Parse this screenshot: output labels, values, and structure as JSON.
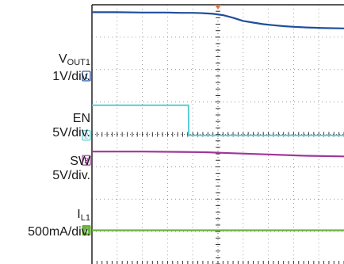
{
  "chart_data": {
    "type": "line",
    "title": "",
    "xlabel": "",
    "ylabel": "",
    "grid": true,
    "divisions": {
      "x": 10,
      "y": 8
    },
    "trigger_marker_color": "#e8743b",
    "channels": [
      {
        "id": "1",
        "name_main": "V",
        "name_sub": "OUT1",
        "scale": "1V/div.",
        "color": "#1f4e9c",
        "ground_div": 5.8,
        "values_div": [
          7.77,
          7.77,
          7.76,
          7.76,
          7.75,
          7.75,
          7.74,
          7.72,
          7.68,
          7.6,
          7.5,
          7.45,
          7.4,
          7.37,
          7.34,
          7.32,
          7.3,
          7.28,
          7.27
        ],
        "t_div": [
          0,
          1,
          2,
          3,
          3.5,
          4,
          4.4,
          4.8,
          5.2,
          5.6,
          6.0,
          6.4,
          6.8,
          7.2,
          7.6,
          8.0,
          8.5,
          9.2,
          10
        ]
      },
      {
        "id": "2",
        "name_main": "EN",
        "name_sub": "",
        "scale": "5V/div.",
        "color": "#5ccbd8",
        "ground_div": 3.97,
        "values_div": [
          4.9,
          4.9,
          3.97,
          3.97
        ],
        "t_div": [
          0,
          3.83,
          3.84,
          10
        ]
      },
      {
        "id": "3",
        "name_main": "SW",
        "name_sub": "",
        "scale": "5V/div.",
        "color": "#a0359a",
        "ground_div": 3.2,
        "values_div": [
          3.47,
          3.47,
          3.46,
          3.45,
          3.42,
          3.38,
          3.34,
          3.32
        ],
        "t_div": [
          0,
          2,
          3.5,
          4.5,
          5.5,
          7,
          8.5,
          10
        ]
      },
      {
        "id": "4",
        "name_main": "I",
        "name_sub": "L1",
        "scale": "500mA/div.",
        "color": "#6bb33d",
        "ground_div": 1.04,
        "values_div": [
          1.04,
          1.04
        ],
        "t_div": [
          0,
          10
        ]
      }
    ]
  }
}
